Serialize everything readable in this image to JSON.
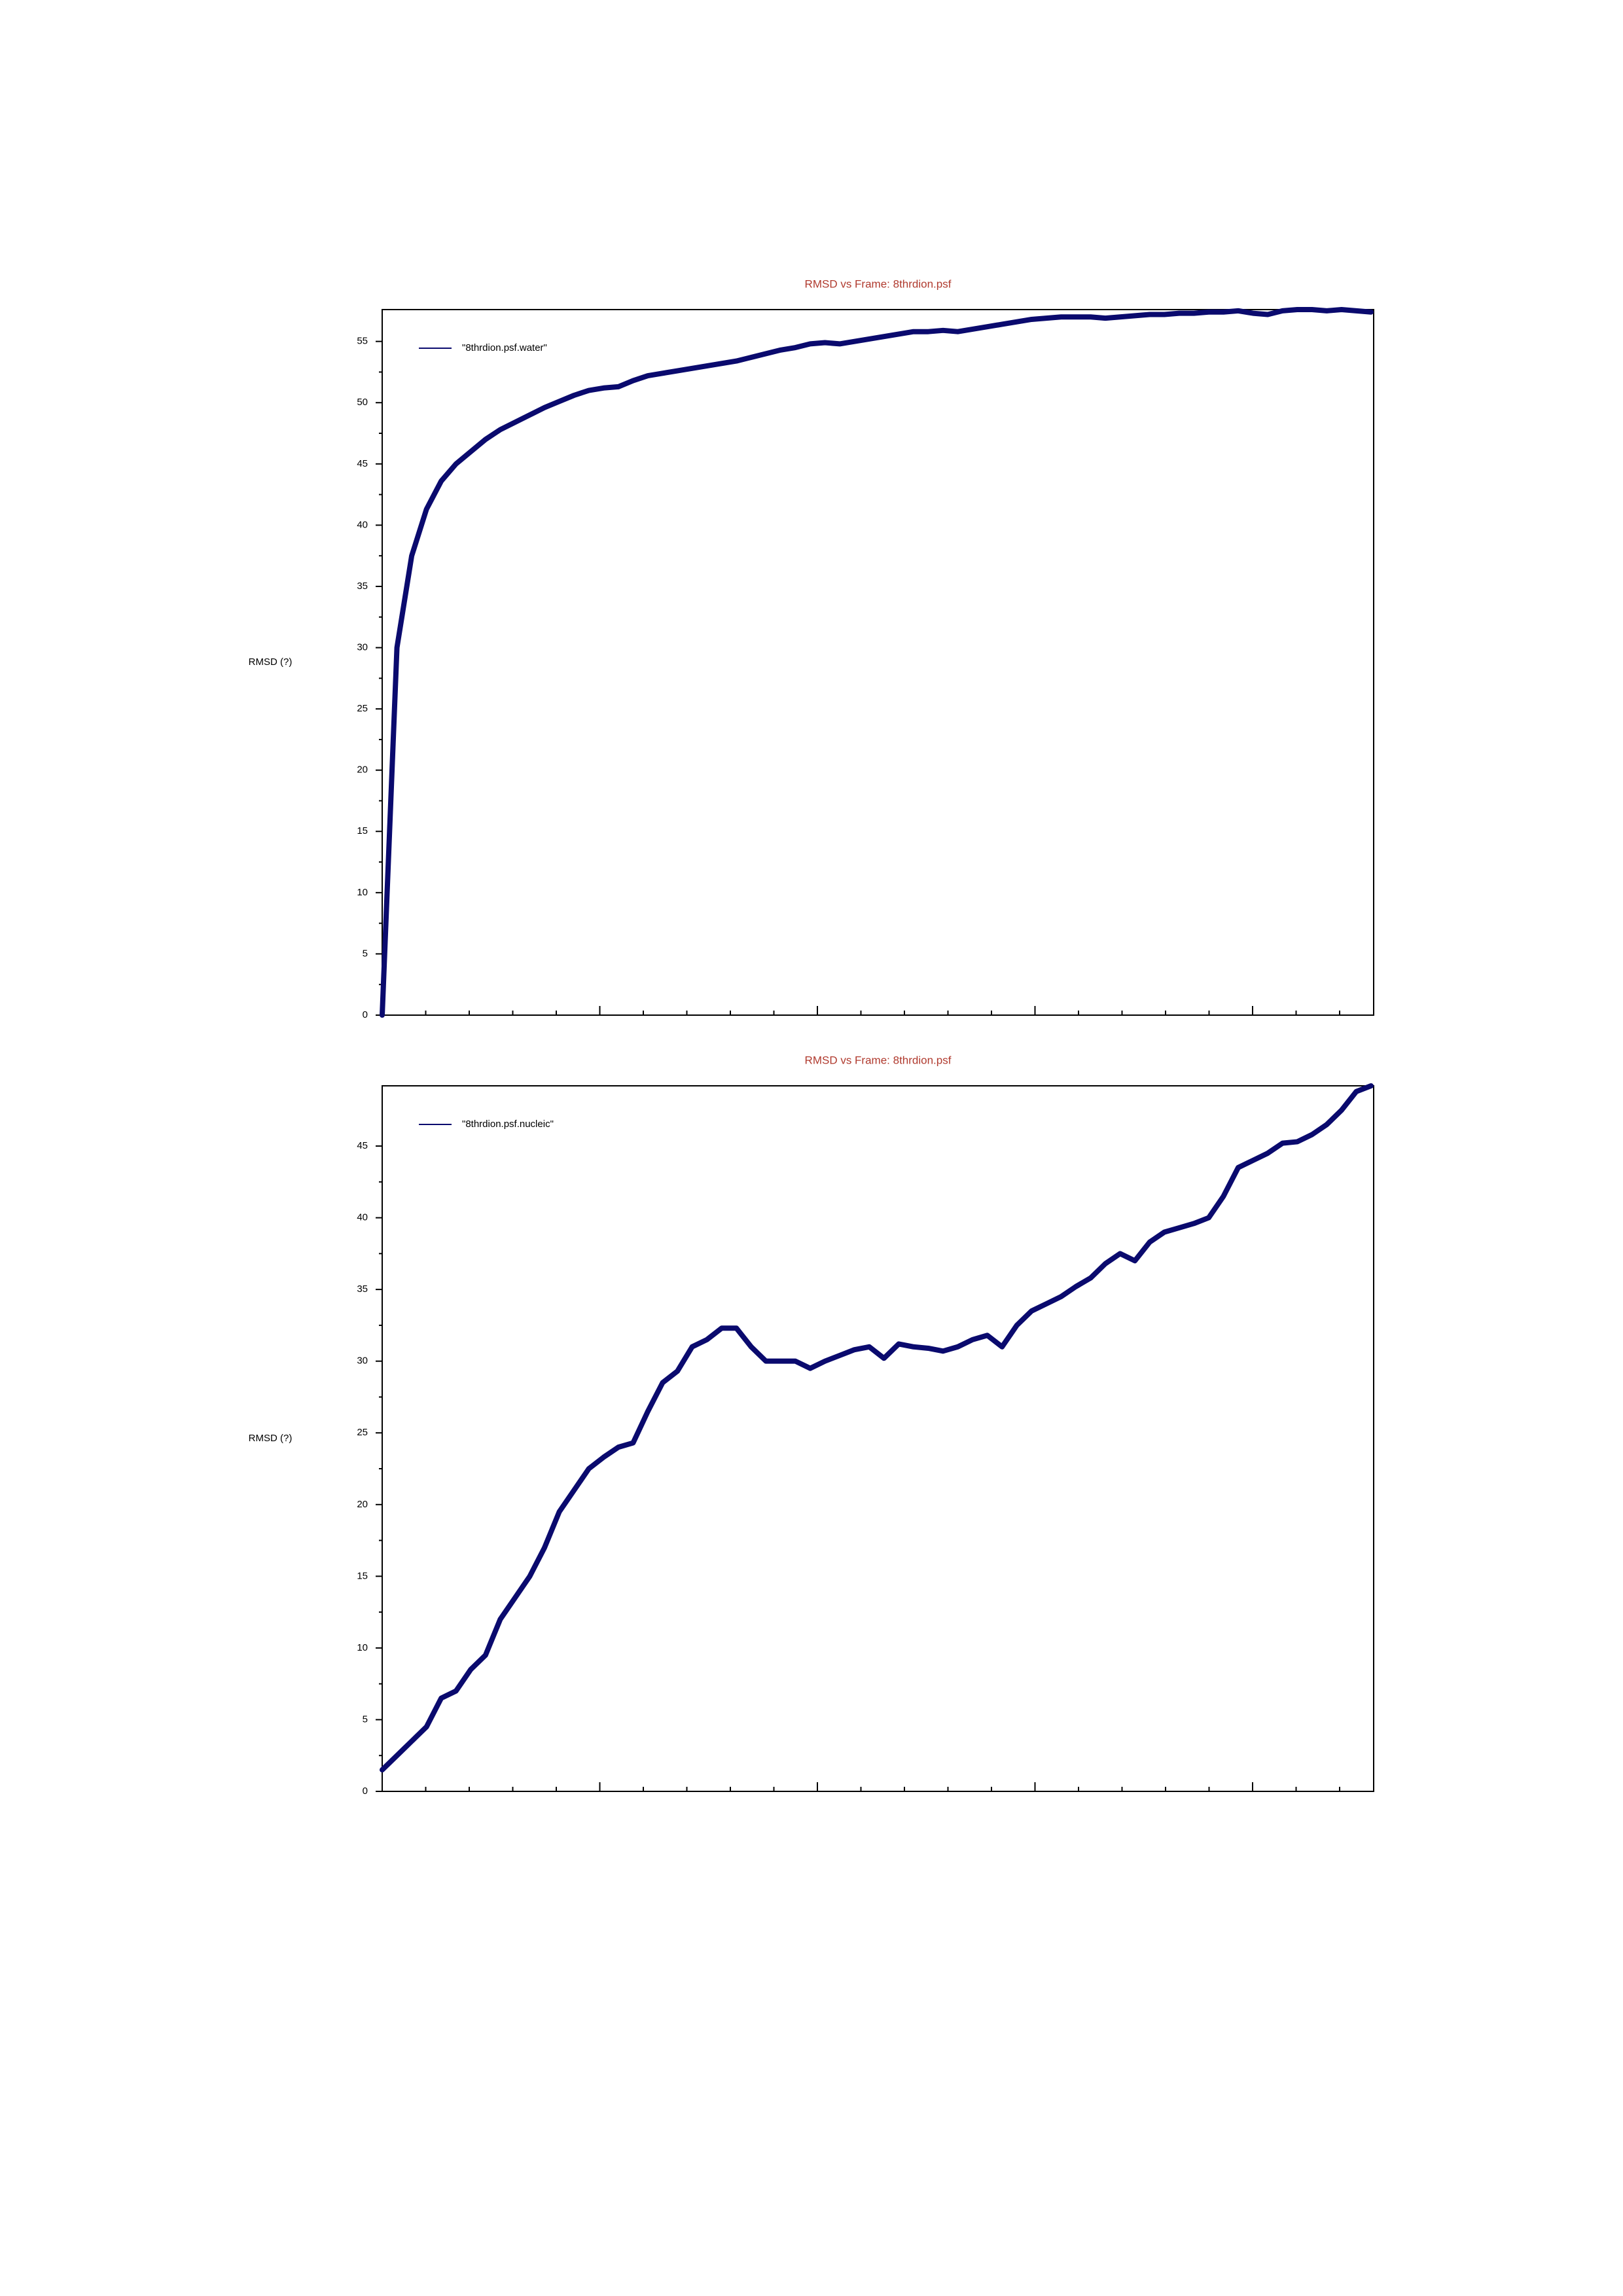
{
  "chart_data": [
    {
      "type": "line",
      "title": "RMSD vs Frame: 8thrdion.psf",
      "ylabel": "RMSD (?)",
      "ylim": [
        0,
        57.6
      ],
      "yticks": [
        0,
        5,
        10,
        15,
        20,
        25,
        30,
        35,
        40,
        45,
        50,
        55
      ],
      "legend": "upper left",
      "series": [
        {
          "name": "\"8thrdion.psf.water\"",
          "color": "#0a0a6e",
          "values": [
            0,
            30,
            37.5,
            41.3,
            43.6,
            45,
            46,
            47,
            47.8,
            48.4,
            49,
            49.6,
            50.1,
            50.6,
            51,
            51.2,
            51.3,
            51.8,
            52.2,
            52.4,
            52.6,
            52.8,
            53,
            53.2,
            53.4,
            53.7,
            54,
            54.3,
            54.5,
            54.8,
            54.9,
            54.8,
            55,
            55.2,
            55.4,
            55.6,
            55.8,
            55.8,
            55.9,
            55.8,
            56,
            56.2,
            56.4,
            56.6,
            56.8,
            56.9,
            57,
            57,
            57,
            56.9,
            57,
            57.1,
            57.2,
            57.2,
            57.3,
            57.3,
            57.4,
            57.4,
            57.5,
            57.3,
            57.2,
            57.5,
            57.6,
            57.6,
            57.5,
            57.6,
            57.5,
            57.4
          ]
        }
      ]
    },
    {
      "type": "line",
      "title": "RMSD vs Frame: 8thrdion.psf",
      "ylabel": "RMSD (?)",
      "ylim": [
        0,
        49.2
      ],
      "yticks": [
        0,
        5,
        10,
        15,
        20,
        25,
        30,
        35,
        40,
        45
      ],
      "legend": "upper left",
      "series": [
        {
          "name": "\"8thrdion.psf.nucleic\"",
          "color": "#0a0a6e",
          "values": [
            1.5,
            2.5,
            3.5,
            4.5,
            6.5,
            7,
            8.5,
            9.5,
            12,
            13.5,
            15,
            17,
            19.5,
            21,
            22.5,
            23.3,
            24,
            24.3,
            26.5,
            28.5,
            29.3,
            31,
            31.5,
            32.3,
            32.3,
            31,
            30,
            30,
            30,
            29.5,
            30,
            30.4,
            30.8,
            31,
            30.2,
            31.2,
            31,
            30.9,
            30.7,
            31,
            31.5,
            31.8,
            31,
            32.5,
            33.5,
            34,
            34.5,
            35.2,
            35.8,
            36.8,
            37.5,
            37,
            38.3,
            39,
            39.3,
            39.6,
            40,
            41.5,
            43.5,
            44,
            44.5,
            45.2,
            45.3,
            45.8,
            46.5,
            47.5,
            48.8,
            49.2
          ]
        }
      ]
    }
  ]
}
